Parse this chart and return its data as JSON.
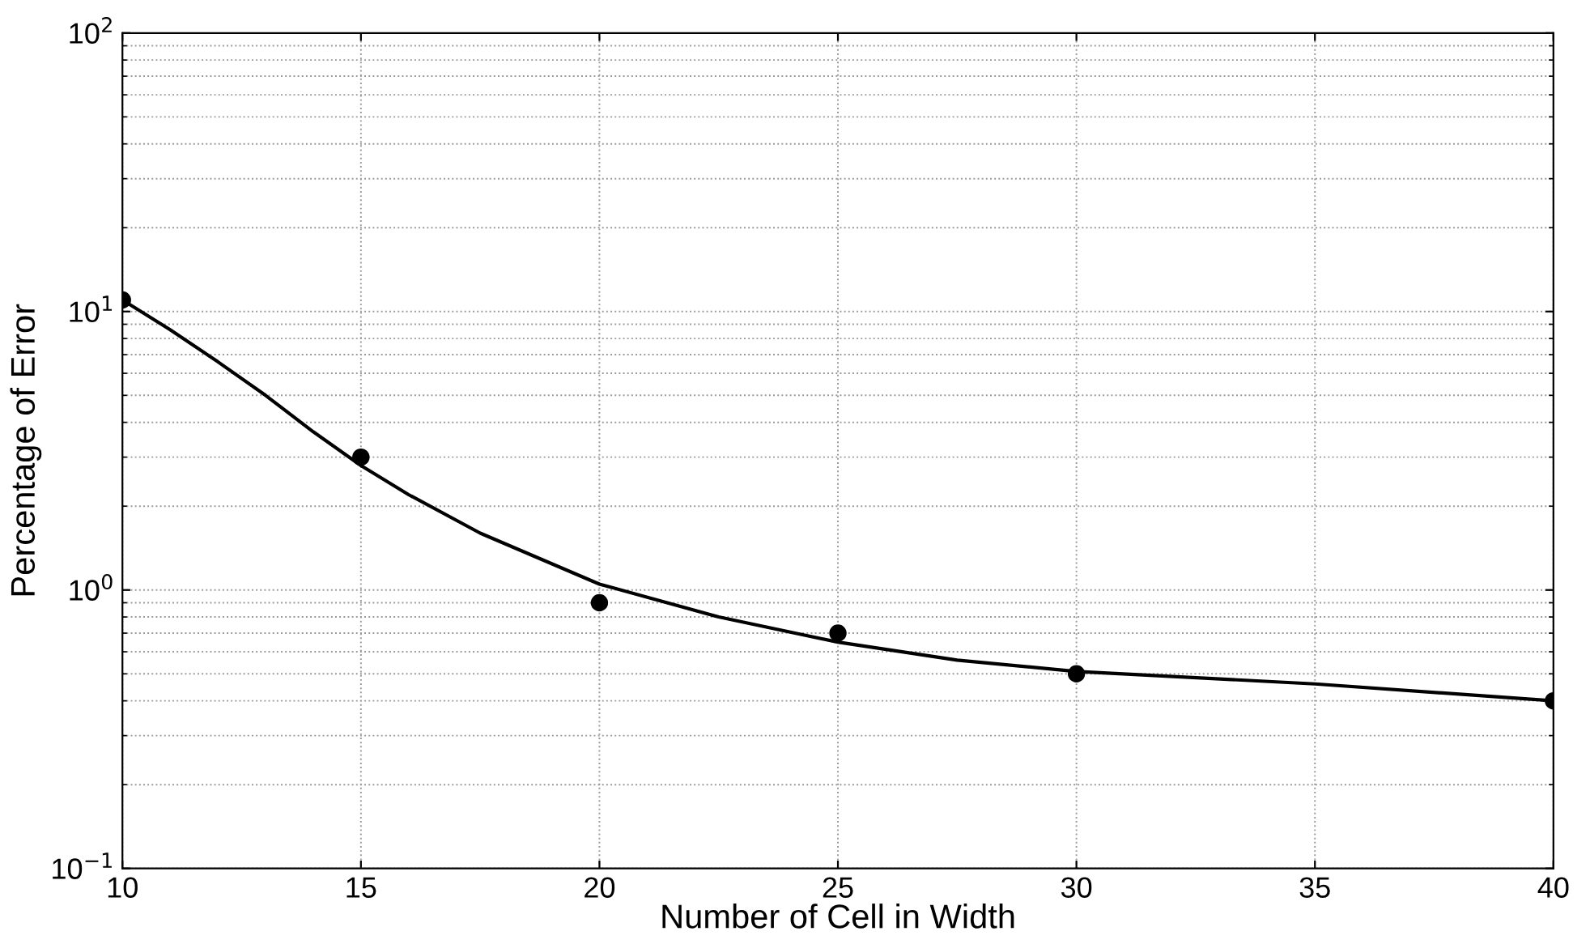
{
  "chart_data": {
    "type": "scatter",
    "xlabel": "Number of Cell in Width",
    "ylabel": "Percentage of Error",
    "series": [
      {
        "color": "#000000",
        "marker": "circle",
        "x": [
          10,
          15,
          20,
          25,
          30,
          40
        ],
        "values": [
          11,
          3,
          0.9,
          0.7,
          0.5,
          0.4
        ]
      },
      {
        "type": "line",
        "color": "#000000",
        "marker": "none",
        "line_style": "solid",
        "x": [
          10,
          11,
          12,
          13,
          14,
          15,
          16,
          17.5,
          20,
          22.5,
          25,
          27.5,
          30,
          35,
          40
        ],
        "values": [
          11,
          8.6,
          6.6,
          5.0,
          3.7,
          2.8,
          2.2,
          1.6,
          1.05,
          0.8,
          0.65,
          0.56,
          0.51,
          0.46,
          0.4
        ]
      }
    ],
    "xlim": [
      10,
      40
    ],
    "xticks": [
      10,
      15,
      20,
      25,
      30,
      35,
      40
    ],
    "ylim": [
      0.1,
      100
    ],
    "yticks": [
      {
        "value": 0.1,
        "label": "10$^{−1}$"
      },
      {
        "value": 1,
        "label": "10$^{0}$"
      },
      {
        "value": 10,
        "label": "10$^{1}$"
      },
      {
        "value": 100,
        "label": "10$^{2}$"
      }
    ],
    "log": "y",
    "grid": true,
    "legend": false
  }
}
